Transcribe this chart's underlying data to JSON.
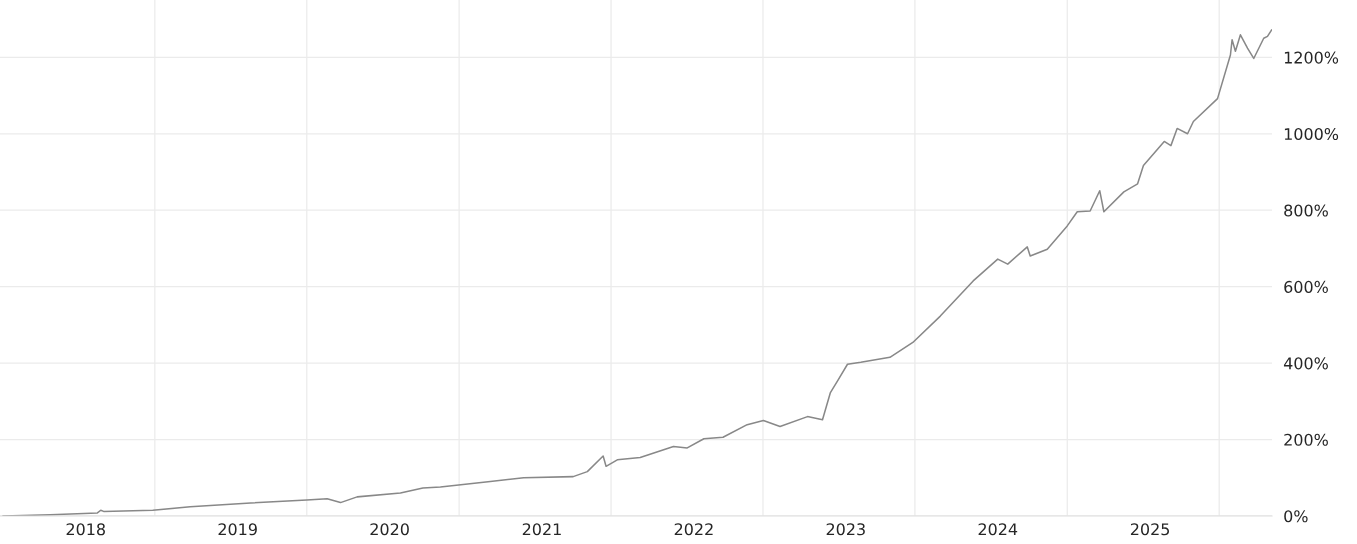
{
  "chart_data": {
    "type": "line",
    "x": [
      "2017-06-16",
      "2017-10-08",
      "2018-01-29",
      "2018-02-06",
      "2018-02-13",
      "2018-06-11",
      "2018-09-09",
      "2019-02-01",
      "2019-06-16",
      "2019-08-04",
      "2019-09-05",
      "2019-10-15",
      "2020-01-27",
      "2020-03-21",
      "2020-05-02",
      "2020-08-30",
      "2020-11-18",
      "2021-03-17",
      "2021-04-20",
      "2021-05-28",
      "2021-06-04",
      "2021-07-01",
      "2021-08-25",
      "2021-11-13",
      "2021-12-16",
      "2022-01-25",
      "2022-03-12",
      "2022-05-09",
      "2022-06-17",
      "2022-07-27",
      "2022-10-01",
      "2022-11-06",
      "2022-11-25",
      "2022-12-14",
      "2023-01-05",
      "2023-02-06",
      "2023-04-17",
      "2023-06-11",
      "2023-08-16",
      "2023-11-03",
      "2024-01-01",
      "2024-01-25",
      "2024-03-12",
      "2024-03-19",
      "2024-04-29",
      "2024-06-16",
      "2024-07-10",
      "2024-08-10",
      "2024-09-02",
      "2024-09-12",
      "2024-10-30",
      "2024-12-02",
      "2024-12-16",
      "2025-02-04",
      "2025-02-20",
      "2025-03-07",
      "2025-04-01",
      "2025-04-15",
      "2025-06-12",
      "2025-07-13",
      "2025-07-17",
      "2025-07-25",
      "2025-08-06",
      "2025-08-23",
      "2025-09-07",
      "2025-10-01",
      "2025-10-10",
      "2025-10-20"
    ],
    "series": [
      {
        "color": "#888888",
        "values": [
          0,
          3,
          8,
          15,
          12,
          15,
          24,
          34,
          42,
          45,
          35,
          50,
          60,
          73,
          76,
          90,
          100,
          103,
          116,
          157,
          130,
          147,
          153,
          182,
          178,
          202,
          206,
          239,
          250,
          234,
          260,
          252,
          323,
          357,
          397,
          402,
          415,
          454,
          523,
          615,
          672,
          659,
          704,
          680,
          698,
          759,
          796,
          798,
          851,
          796,
          848,
          869,
          917,
          980,
          969,
          1014,
          1000,
          1032,
          1092,
          1206,
          1246,
          1216,
          1259,
          1224,
          1197,
          1250,
          1255,
          1272
        ]
      }
    ],
    "xlim": [
      "2017-06-09",
      "2025-10-21"
    ],
    "xticks": [
      {
        "value": "2018-01-01",
        "label": "2018"
      },
      {
        "value": "2019-01-01",
        "label": "2019"
      },
      {
        "value": "2020-01-01",
        "label": "2020"
      },
      {
        "value": "2021-01-01",
        "label": "2021"
      },
      {
        "value": "2022-01-01",
        "label": "2022"
      },
      {
        "value": "2023-01-01",
        "label": "2023"
      },
      {
        "value": "2024-01-01",
        "label": "2024"
      },
      {
        "value": "2025-01-01",
        "label": "2025"
      },
      {
        "value": "2018-06-16",
        "label": null
      },
      {
        "value": "2019-06-16",
        "label": null
      },
      {
        "value": "2020-06-16",
        "label": null
      },
      {
        "value": "2021-06-16",
        "label": null
      },
      {
        "value": "2022-06-16",
        "label": null
      },
      {
        "value": "2023-06-16",
        "label": null
      },
      {
        "value": "2024-06-16",
        "label": null
      },
      {
        "value": "2025-06-16",
        "label": null
      }
    ],
    "ylim": [
      0,
      1350
    ],
    "yticks": [
      {
        "value": 0,
        "label": "0%"
      },
      {
        "value": 200,
        "label": "200%"
      },
      {
        "value": 400,
        "label": "400%"
      },
      {
        "value": 600,
        "label": "600%"
      },
      {
        "value": 800,
        "label": "800%"
      },
      {
        "value": 1000,
        "label": "1000%"
      },
      {
        "value": 1200,
        "label": "1200%"
      }
    ],
    "grid": true,
    "marker": "none",
    "line_style": "solid"
  }
}
